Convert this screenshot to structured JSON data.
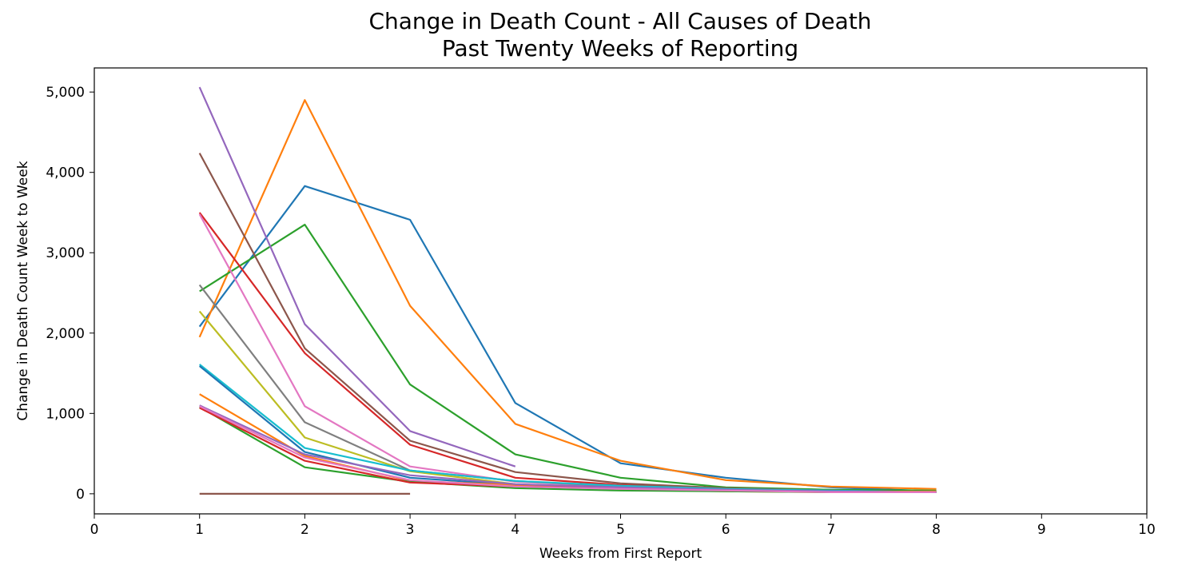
{
  "chart_data": {
    "type": "line",
    "title": "Change in Death Count - All Causes of Death",
    "subtitle": "Past Twenty Weeks of Reporting",
    "xlabel": "Weeks from First Report",
    "ylabel": "Change in Death Count Week to Week",
    "xlim": [
      0,
      10
    ],
    "ylim": [
      -250,
      5300
    ],
    "x_ticks": [
      0,
      1,
      2,
      3,
      4,
      5,
      6,
      7,
      8,
      9,
      10
    ],
    "y_ticks": [
      0,
      1000,
      2000,
      3000,
      4000,
      5000
    ],
    "y_tick_labels": [
      "0",
      "1,000",
      "2,000",
      "3,000",
      "4,000",
      "5,000"
    ],
    "grid": false,
    "series": [
      {
        "color": "#1f77b4",
        "x": [
          1,
          2,
          3,
          4,
          5,
          6,
          7,
          8
        ],
        "values": [
          2080,
          3830,
          3410,
          1130,
          380,
          200,
          80,
          30
        ]
      },
      {
        "color": "#ff7f0e",
        "x": [
          1,
          2,
          3,
          4,
          5,
          6,
          7,
          8
        ],
        "values": [
          1950,
          4900,
          2340,
          870,
          410,
          170,
          90,
          60
        ]
      },
      {
        "color": "#2ca02c",
        "x": [
          1,
          2,
          3,
          4,
          5,
          6,
          7,
          8
        ],
        "values": [
          2520,
          3350,
          1360,
          490,
          200,
          80,
          50,
          40
        ]
      },
      {
        "color": "#d62728",
        "x": [
          1,
          2,
          3,
          4,
          5,
          6,
          7,
          8
        ],
        "values": [
          3500,
          1750,
          610,
          200,
          110,
          60,
          40,
          20
        ]
      },
      {
        "color": "#9467bd",
        "x": [
          1,
          2,
          3,
          4
        ],
        "values": [
          5060,
          2110,
          780,
          340
        ]
      },
      {
        "color": "#8c564b",
        "x": [
          1,
          2,
          3,
          4,
          5,
          6,
          7,
          8
        ],
        "values": [
          4240,
          1810,
          660,
          270,
          130,
          70,
          40,
          20
        ]
      },
      {
        "color": "#e377c2",
        "x": [
          1,
          2,
          3,
          4,
          5,
          6,
          7,
          8
        ],
        "values": [
          3480,
          1090,
          340,
          150,
          90,
          50,
          30,
          20
        ]
      },
      {
        "color": "#7f7f7f",
        "x": [
          1,
          2,
          3,
          4,
          5,
          6,
          7,
          8
        ],
        "values": [
          2600,
          890,
          290,
          160,
          90,
          50,
          30,
          20
        ]
      },
      {
        "color": "#bcbd22",
        "x": [
          1,
          2,
          3,
          4,
          5,
          6,
          7,
          8
        ],
        "values": [
          2270,
          700,
          280,
          120,
          70,
          40,
          30,
          20
        ]
      },
      {
        "color": "#17becf",
        "x": [
          1,
          2,
          3,
          4,
          5,
          6,
          7,
          8
        ],
        "values": [
          1610,
          570,
          290,
          160,
          100,
          60,
          40,
          20
        ]
      },
      {
        "color": "#1f77b4",
        "x": [
          1,
          2,
          3,
          4,
          5,
          6,
          7,
          8
        ],
        "values": [
          1590,
          520,
          200,
          110,
          70,
          40,
          30,
          20
        ]
      },
      {
        "color": "#ff7f0e",
        "x": [
          1,
          2,
          3,
          4,
          5,
          6,
          7,
          8
        ],
        "values": [
          1240,
          470,
          160,
          110,
          60,
          30,
          20,
          30
        ]
      },
      {
        "color": "#2ca02c",
        "x": [
          1,
          2,
          3,
          4,
          5,
          6,
          7,
          8
        ],
        "values": [
          1080,
          330,
          150,
          70,
          40,
          30,
          20,
          20
        ]
      },
      {
        "color": "#d62728",
        "x": [
          1,
          2,
          3,
          4,
          5
        ],
        "values": [
          1070,
          410,
          140,
          90,
          70
        ]
      },
      {
        "color": "#9467bd",
        "x": [
          1,
          2,
          3,
          4,
          5,
          6,
          7,
          8
        ],
        "values": [
          1100,
          490,
          230,
          120,
          80,
          50,
          30,
          20
        ]
      },
      {
        "color": "#8c564b",
        "x": [
          1,
          2,
          3
        ],
        "values": [
          0,
          0,
          0
        ]
      },
      {
        "color": "#e377c2",
        "x": [
          1,
          2,
          3,
          4,
          5,
          6,
          7,
          8
        ],
        "values": [
          1090,
          450,
          170,
          90,
          60,
          40,
          20,
          20
        ]
      }
    ]
  }
}
